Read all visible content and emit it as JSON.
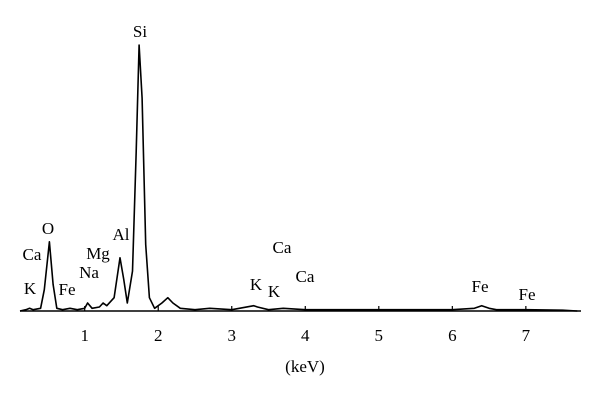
{
  "chart_data": {
    "type": "line",
    "color": "#000000",
    "x": [
      0.12,
      0.2,
      0.25,
      0.3,
      0.4,
      0.45,
      0.52,
      0.57,
      0.62,
      0.7,
      0.8,
      0.9,
      1.0,
      1.04,
      1.1,
      1.2,
      1.25,
      1.3,
      1.4,
      1.48,
      1.53,
      1.58,
      1.65,
      1.7,
      1.74,
      1.78,
      1.83,
      1.88,
      1.95,
      2.05,
      2.13,
      2.2,
      2.3,
      2.5,
      2.7,
      3.0,
      3.3,
      3.35,
      3.5,
      3.7,
      4.0,
      5.0,
      6.0,
      6.3,
      6.4,
      6.5,
      6.6,
      7.0,
      7.5,
      7.7
    ],
    "values": [
      0,
      0.5,
      1,
      0.5,
      1,
      8,
      26,
      10,
      1,
      0.5,
      1,
      0.5,
      1,
      3,
      1,
      1.5,
      3,
      2,
      5,
      20,
      12,
      3,
      15,
      60,
      100,
      80,
      25,
      5,
      1,
      3,
      5,
      3,
      1,
      0.5,
      1,
      0.5,
      2,
      1.5,
      0.5,
      1,
      0.5,
      0.5,
      0.5,
      1,
      2,
      1,
      0.5,
      0.5,
      0.3,
      0
    ],
    "xlim": [
      0.12,
      7.75
    ],
    "ylim": [
      0,
      100
    ],
    "xticks": [
      1,
      2,
      3,
      4,
      5,
      6,
      7
    ],
    "xlabel": "(keV)",
    "annotations": [
      "Si",
      "O",
      "Ca",
      "K",
      "Fe",
      "Na",
      "Mg",
      "Al",
      "K",
      "K",
      "Ca",
      "Ca",
      "Fe",
      "Fe"
    ]
  }
}
